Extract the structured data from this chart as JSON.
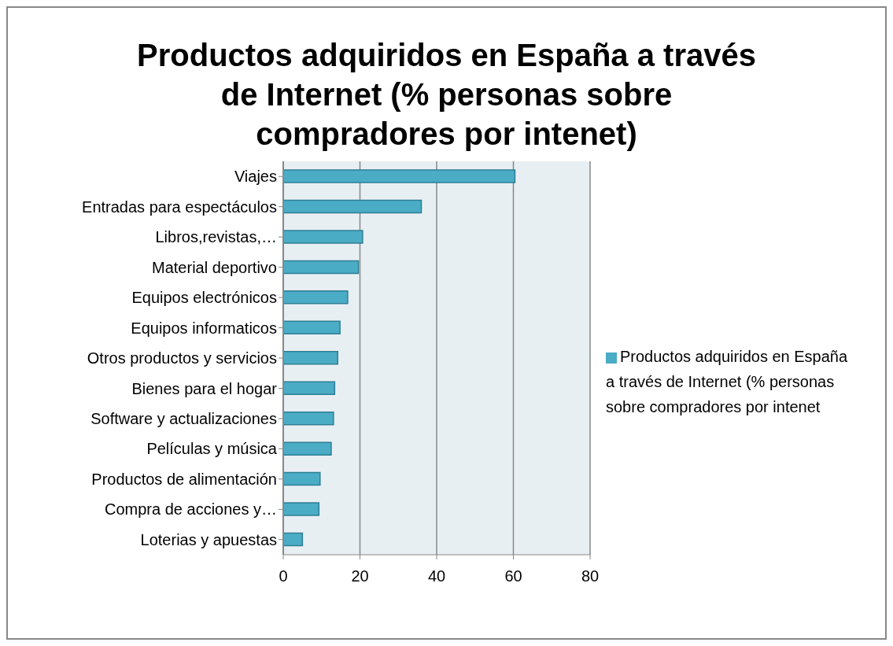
{
  "chart_data": {
    "type": "bar",
    "orientation": "horizontal",
    "title": "Productos adquiridos en España a través de Internet (% personas sobre compradores por intenet)",
    "categories": [
      "Viajes",
      "Entradas para espectáculos",
      "Libros,revistas,…",
      "Material deportivo",
      "Equipos electrónicos",
      "Equipos informaticos",
      "Otros productos y servicios",
      "Bienes para el hogar",
      "Software y actualizaciones",
      "Películas y música",
      "Productos de alimentación",
      "Compra de acciones y…",
      "Loterias y apuestas"
    ],
    "series": [
      {
        "name": "Productos adquiridos en España a través de Internet (% personas sobre compradores por intenet",
        "color": "#4bacc6",
        "values": [
          60.4,
          36.0,
          20.7,
          19.6,
          16.8,
          14.8,
          14.2,
          13.4,
          13.1,
          12.5,
          9.6,
          9.3,
          5.0
        ]
      }
    ],
    "xlim": [
      0,
      80
    ],
    "xticks": [
      0,
      20,
      40,
      60,
      80
    ],
    "grid": "x",
    "legend": "right"
  }
}
